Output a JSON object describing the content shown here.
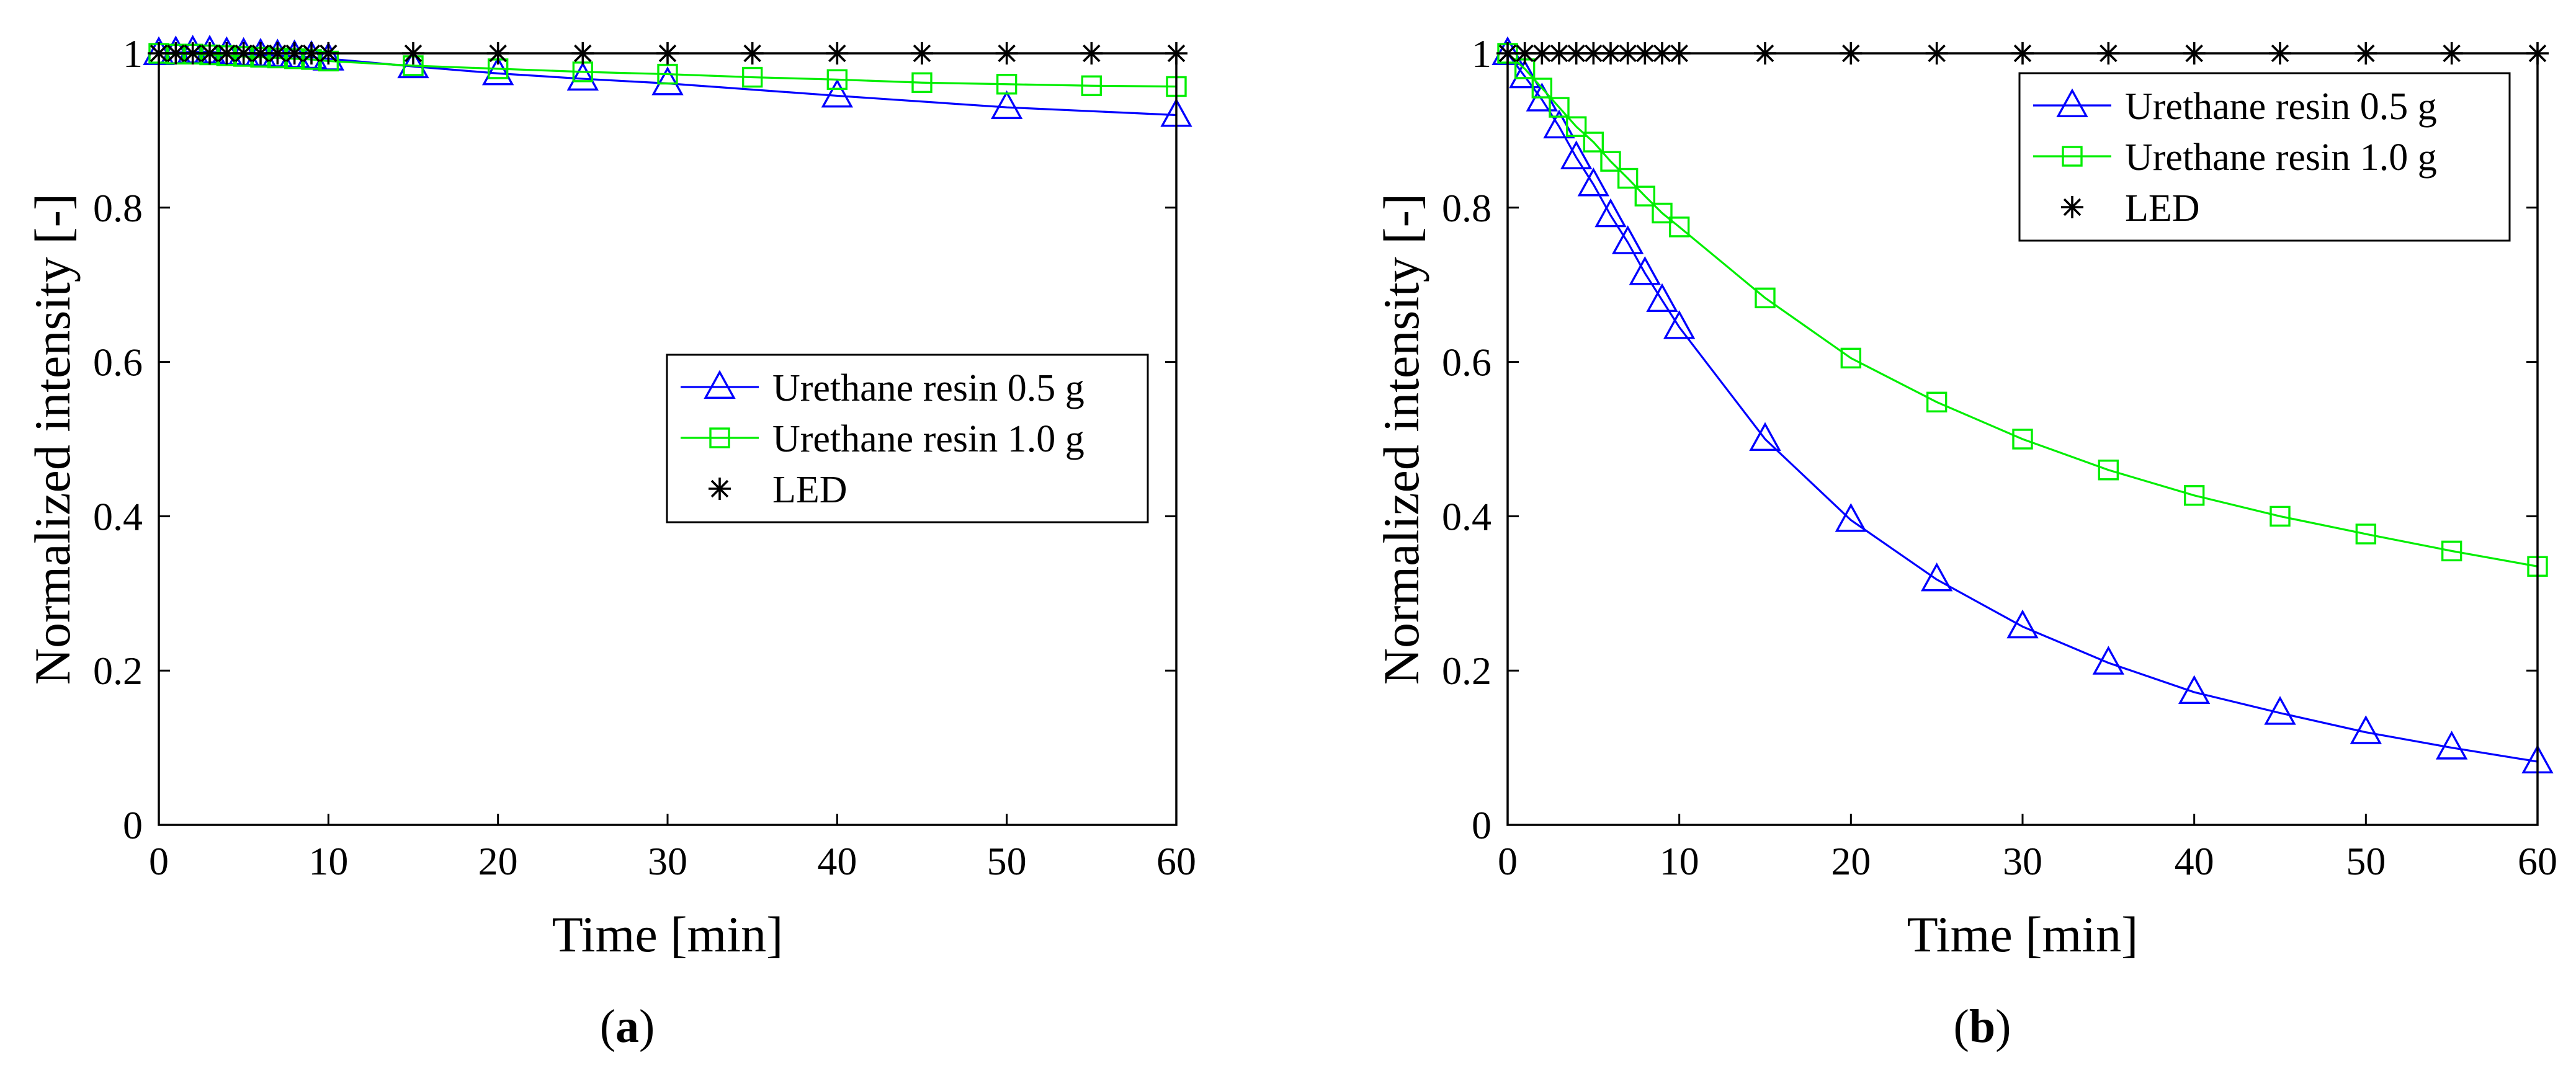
{
  "chart_data": [
    {
      "type": "line",
      "panel_label": "(a)",
      "panel_letter": "a",
      "xlabel": "Time [min]",
      "ylabel": "Normalized intensity [-]",
      "xlim": [
        0,
        60
      ],
      "ylim": [
        0,
        1
      ],
      "xticks": [
        "0",
        "10",
        "20",
        "30",
        "40",
        "50",
        "60"
      ],
      "yticks": [
        "0",
        "0.2",
        "0.4",
        "0.6",
        "0.8",
        "1"
      ],
      "legend_position": "center-right",
      "series": [
        {
          "name": "Urethane resin 0.5 g",
          "color": "#0000ff",
          "marker": "triangle",
          "x": [
            0,
            1,
            2,
            3,
            4,
            5,
            6,
            7,
            8,
            9,
            10,
            15,
            20,
            25,
            30,
            40,
            50,
            60
          ],
          "y": [
            1.0,
            1.001,
            1.002,
            1.002,
            1.0,
            0.999,
            0.998,
            0.997,
            0.996,
            0.995,
            0.993,
            0.983,
            0.974,
            0.967,
            0.961,
            0.945,
            0.93,
            0.92
          ]
        },
        {
          "name": "Urethane resin 1.0 g",
          "color": "#00ee00",
          "marker": "square",
          "x": [
            0,
            1,
            2,
            3,
            4,
            5,
            6,
            7,
            8,
            9,
            10,
            15,
            20,
            25,
            30,
            35,
            40,
            45,
            50,
            55,
            60
          ],
          "y": [
            1.0,
            0.999,
            0.999,
            0.998,
            0.997,
            0.996,
            0.995,
            0.994,
            0.993,
            0.992,
            0.99,
            0.984,
            0.98,
            0.976,
            0.973,
            0.969,
            0.966,
            0.962,
            0.96,
            0.958,
            0.957
          ]
        },
        {
          "name": "LED",
          "color": "#000000",
          "marker": "asterisk",
          "x": [
            0,
            1,
            2,
            3,
            4,
            5,
            6,
            7,
            8,
            9,
            10,
            15,
            20,
            25,
            30,
            35,
            40,
            45,
            50,
            55,
            60
          ],
          "y": [
            1,
            1,
            1,
            1,
            1,
            1,
            1,
            1,
            1,
            1,
            1,
            1,
            1,
            1,
            1,
            1,
            1,
            1,
            1,
            1,
            1
          ]
        }
      ]
    },
    {
      "type": "line",
      "panel_label": "(b)",
      "panel_letter": "b",
      "xlabel": "Time [min]",
      "ylabel": "Normalized intensity [-]",
      "xlim": [
        0,
        60
      ],
      "ylim": [
        0,
        1
      ],
      "xticks": [
        "0",
        "10",
        "20",
        "30",
        "40",
        "50",
        "60"
      ],
      "yticks": [
        "0",
        "0.2",
        "0.4",
        "0.6",
        "0.8",
        "1"
      ],
      "legend_position": "top-right",
      "series": [
        {
          "name": "Urethane resin 0.5 g",
          "color": "#0000ff",
          "marker": "triangle",
          "x": [
            0,
            1,
            2,
            3,
            4,
            5,
            6,
            7,
            8,
            9,
            10,
            15,
            20,
            25,
            30,
            35,
            40,
            45,
            50,
            55,
            60
          ],
          "y": [
            1.0,
            0.97,
            0.94,
            0.905,
            0.865,
            0.83,
            0.79,
            0.755,
            0.715,
            0.68,
            0.645,
            0.5,
            0.395,
            0.318,
            0.257,
            0.21,
            0.172,
            0.145,
            0.12,
            0.1,
            0.082
          ]
        },
        {
          "name": "Urethane resin 1.0 g",
          "color": "#00ee00",
          "marker": "square",
          "x": [
            0,
            1,
            2,
            3,
            4,
            5,
            6,
            7,
            8,
            9,
            10,
            15,
            20,
            25,
            30,
            35,
            40,
            45,
            50,
            55,
            60
          ],
          "y": [
            1.0,
            0.98,
            0.955,
            0.93,
            0.905,
            0.885,
            0.86,
            0.838,
            0.815,
            0.793,
            0.775,
            0.683,
            0.605,
            0.548,
            0.5,
            0.46,
            0.427,
            0.4,
            0.377,
            0.355,
            0.335
          ]
        },
        {
          "name": "LED",
          "color": "#000000",
          "marker": "asterisk",
          "x": [
            0,
            1,
            2,
            3,
            4,
            5,
            6,
            7,
            8,
            9,
            10,
            15,
            20,
            25,
            30,
            35,
            40,
            45,
            50,
            55,
            60
          ],
          "y": [
            1,
            1,
            1,
            1,
            1,
            1,
            1,
            1,
            1,
            1,
            1,
            1,
            1,
            1,
            1,
            1,
            1,
            1,
            1,
            1,
            1
          ]
        }
      ]
    }
  ]
}
